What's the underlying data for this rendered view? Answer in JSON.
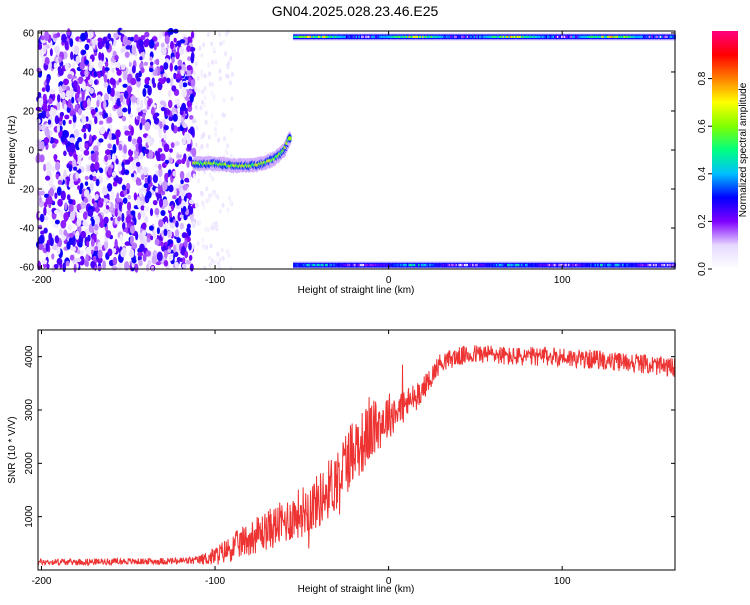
{
  "title": "GN04.2025.028.23.46.E25",
  "chart_data": [
    {
      "type": "heatmap",
      "title": "GN04.2025.028.23.46.E25",
      "xlabel": "Height of straight line (km)",
      "ylabel": "Frequency (Hz)",
      "xlim": [
        -202,
        165
      ],
      "ylim": [
        -61,
        61
      ],
      "xticks": [
        -200,
        -100,
        0,
        100
      ],
      "yticks": [
        -60,
        -40,
        -20,
        0,
        20,
        40,
        60
      ],
      "z_range": [
        0,
        1
      ],
      "colorbar": {
        "label": "Normalized spectral amplitude",
        "ticks": [
          0.0,
          0.2,
          0.4,
          0.6,
          0.8
        ],
        "tick_labels": [
          "0.0",
          "0.2",
          "0.4",
          "0.6",
          "0.8"
        ],
        "colors": [
          "#ffffff",
          "#e6d8ff",
          "#8000ff",
          "#0000ff",
          "#00c0ff",
          "#00ff80",
          "#80ff00",
          "#ffff00",
          "#ff8000",
          "#ff0000",
          "#ff0080"
        ]
      },
      "regions": [
        {
          "name": "broadband noise",
          "x_range": [
            -202,
            -112
          ],
          "y_range": [
            -61,
            61
          ],
          "level": 0.15
        },
        {
          "name": "sparse noise",
          "x_range": [
            -112,
            -90
          ],
          "y_range": [
            -61,
            61
          ],
          "level": 0.05
        },
        {
          "name": "signal track",
          "x": [
            -112,
            -100,
            -90,
            -80,
            -72,
            -65,
            -60,
            -57
          ],
          "y": [
            -7,
            -7,
            -8,
            -8,
            -7,
            -4,
            0,
            6
          ],
          "level": 0.5
        },
        {
          "name": "upper band",
          "x_range": [
            -55,
            165
          ],
          "y_center": 58,
          "level": 0.6
        },
        {
          "name": "lower band",
          "x_range": [
            -55,
            165
          ],
          "y_center": -59,
          "level": 0.4
        }
      ]
    },
    {
      "type": "line",
      "xlabel": "Height of straight line (km)",
      "ylabel": "SNR (10 * V/V)",
      "xlim": [
        -202,
        165
      ],
      "ylim": [
        0,
        4500
      ],
      "xticks": [
        -200,
        -100,
        0,
        100
      ],
      "yticks": [
        1000,
        2000,
        3000,
        4000
      ],
      "color": "#ee3333",
      "series": [
        {
          "x": [
            -202,
            -180,
            -160,
            -140,
            -120,
            -110,
            -100,
            -90,
            -80,
            -70,
            -60,
            -50,
            -40,
            -35,
            -30,
            -25,
            -20,
            -15,
            -10,
            -5,
            0,
            5,
            10,
            15,
            20,
            25,
            30,
            40,
            50,
            60,
            70,
            80,
            90,
            100,
            110,
            120,
            130,
            140,
            150,
            160,
            165
          ],
          "y": [
            150,
            150,
            160,
            160,
            170,
            180,
            260,
            420,
            600,
            750,
            900,
            1100,
            1300,
            1500,
            1700,
            2000,
            2300,
            2400,
            2600,
            2750,
            2900,
            3000,
            3100,
            3250,
            3400,
            3650,
            3900,
            4000,
            4050,
            4050,
            4000,
            4000,
            4000,
            4000,
            3950,
            3950,
            3900,
            3900,
            3850,
            3800,
            3800
          ],
          "noise": [
            60,
            60,
            60,
            60,
            70,
            80,
            180,
            260,
            320,
            380,
            420,
            480,
            520,
            560,
            600,
            640,
            640,
            600,
            560,
            500,
            440,
            380,
            320,
            260,
            220,
            200,
            180,
            180,
            180,
            180,
            180,
            180,
            180,
            180,
            180,
            180,
            180,
            180,
            180,
            180,
            180
          ]
        }
      ]
    }
  ]
}
